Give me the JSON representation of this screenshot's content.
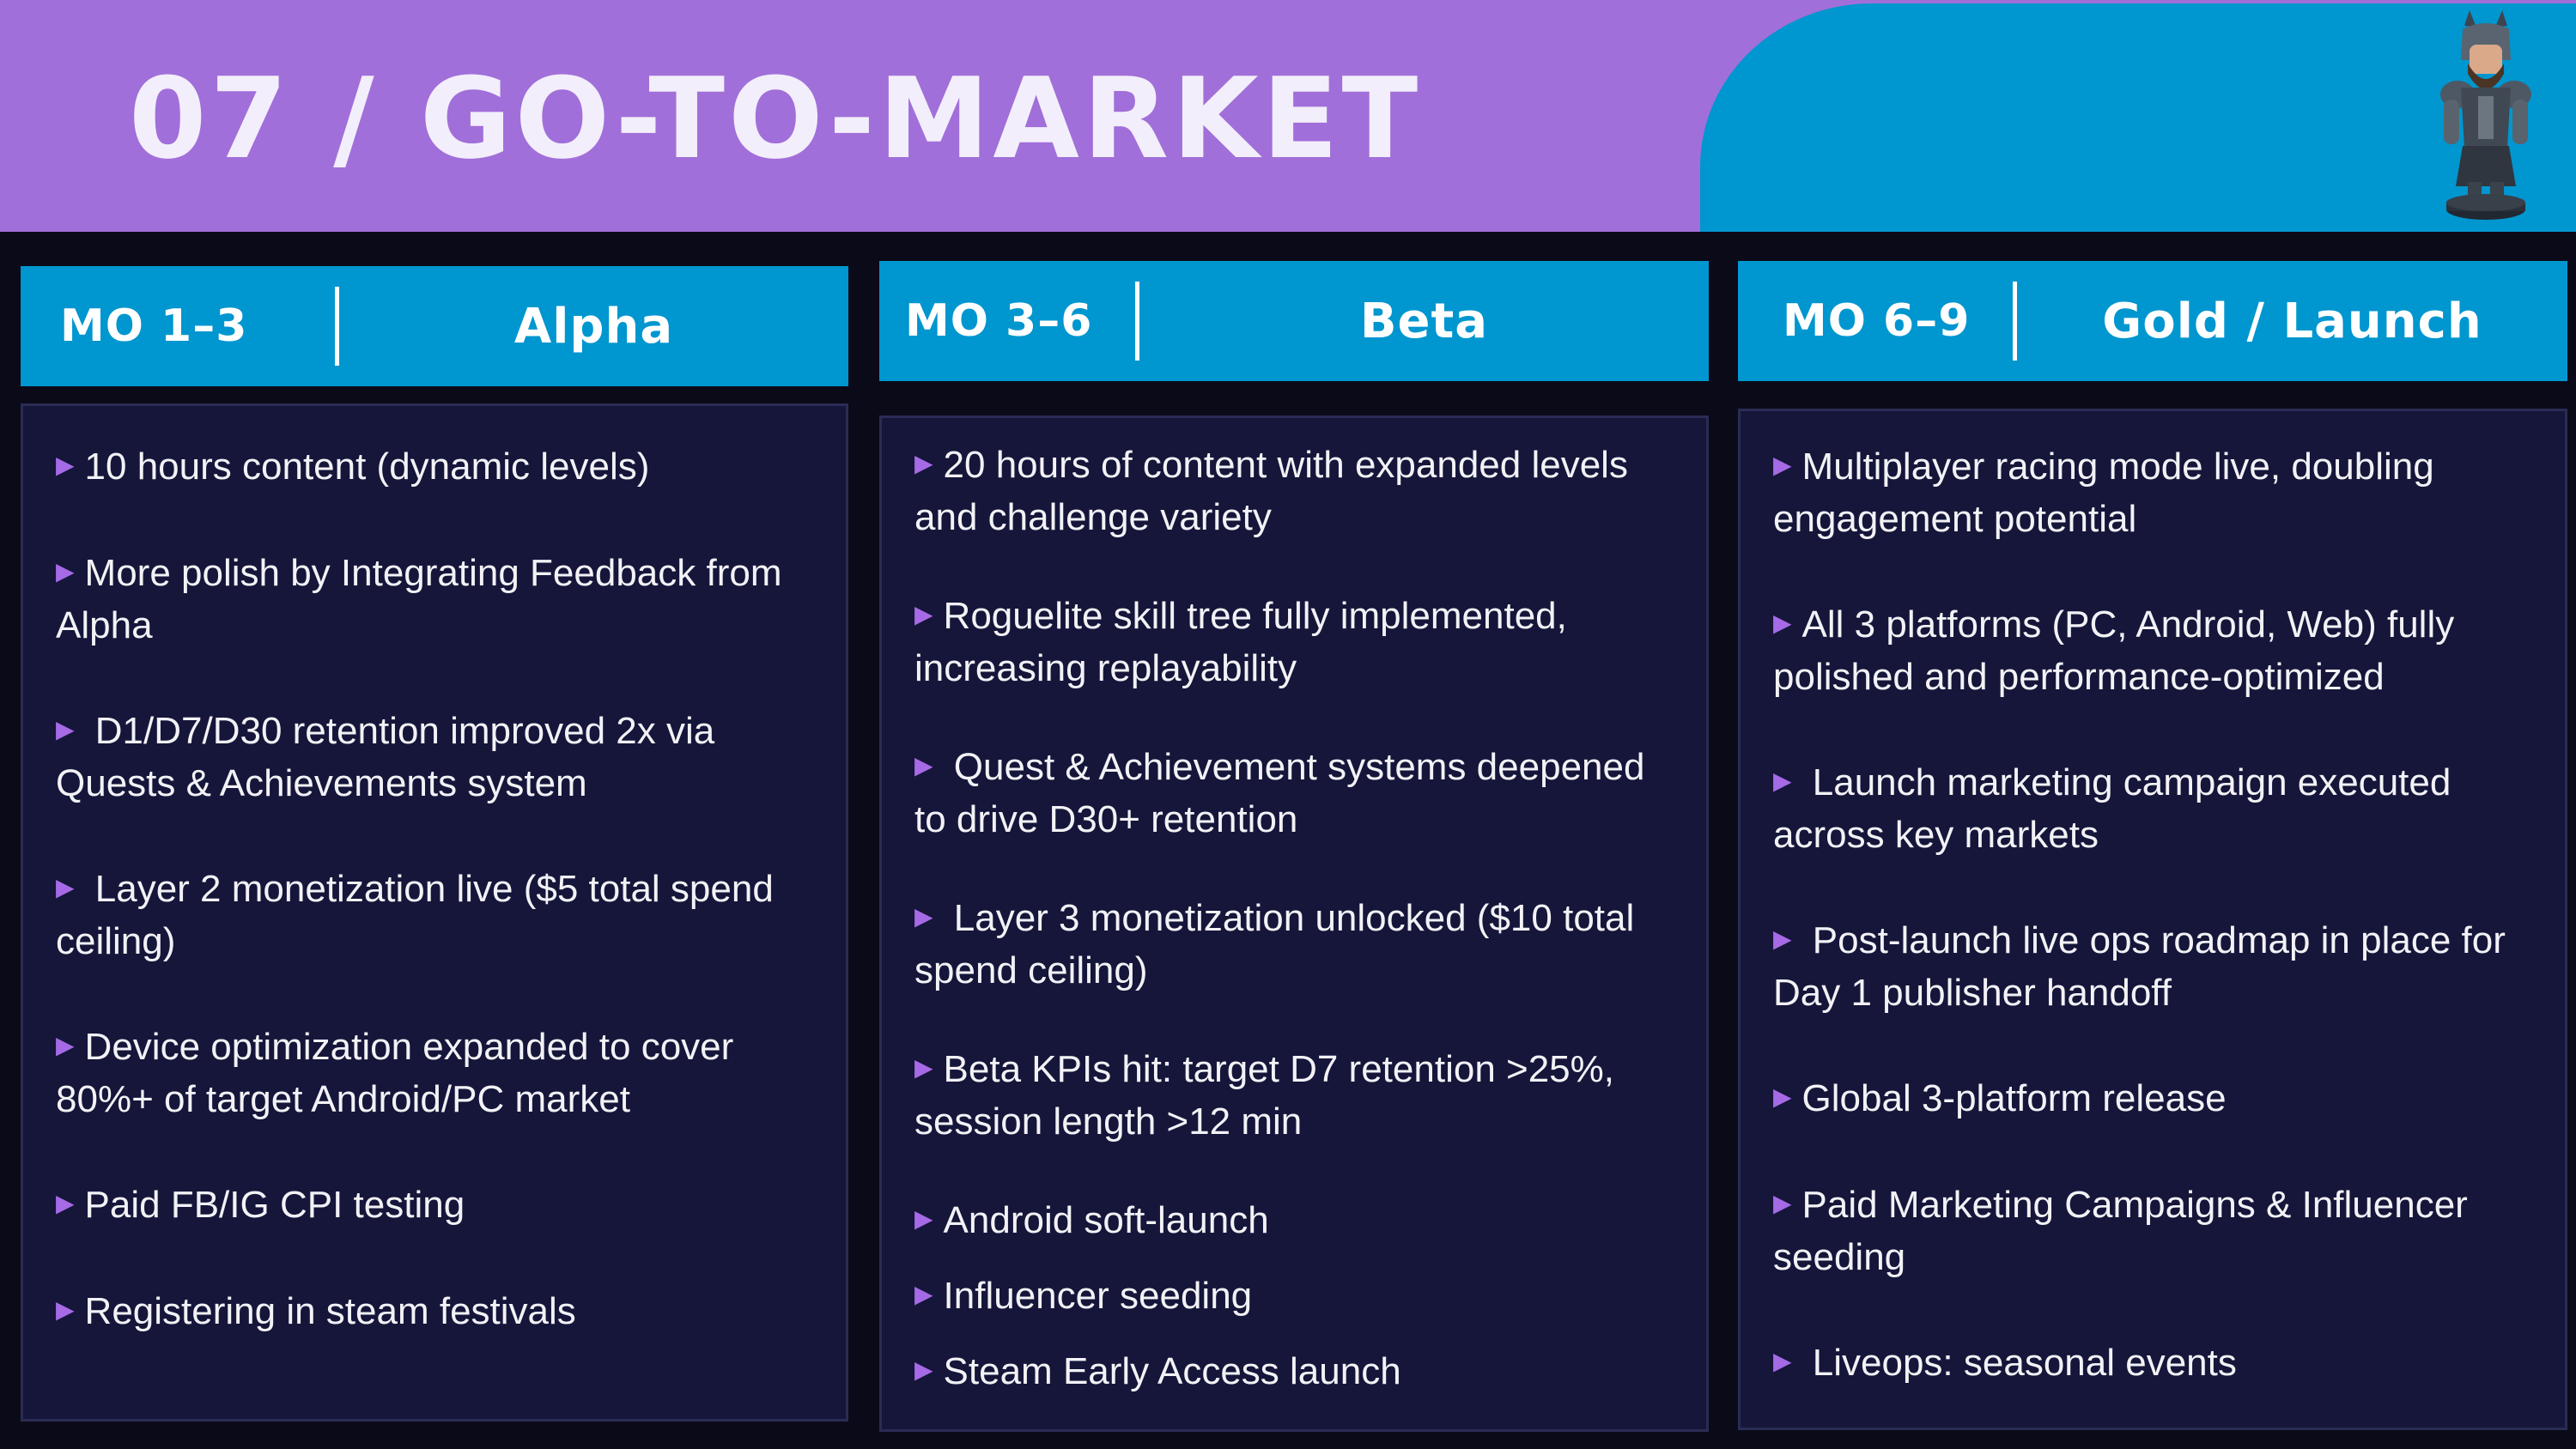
{
  "header": {
    "title": "07 / GO-TO-MARKET",
    "mascot_icon": "armored-warrior-figurine",
    "bg_color": "#a16fd9",
    "accent_color": "#0096cf"
  },
  "phases": [
    {
      "month": "MO 1–3",
      "name": "Alpha",
      "items": [
        "10 hours content (dynamic levels)",
        "More polish by Integrating Feedback from Alpha",
        " D1/D7/D30 retention improved 2x via Quests & Achievements system",
        " Layer 2 monetization live ($5 total spend ceiling)",
        "Device optimization expanded to cover 80%+ of target Android/PC market",
        "Paid FB/IG CPI testing",
        "Registering in steam festivals"
      ]
    },
    {
      "month": "MO 3–6",
      "name": "Beta",
      "items": [
        "20 hours of content with expanded levels and challenge variety",
        "Roguelite skill tree fully implemented, increasing replayability",
        " Quest & Achievement systems deepened to drive D30+ retention",
        " Layer 3 monetization unlocked ($10 total spend ceiling)",
        "Beta KPIs hit: target D7 retention >25%, session length >12 min",
        "Android soft-launch",
        "Influencer seeding",
        "Steam Early Access launch"
      ]
    },
    {
      "month": "MO 6–9",
      "name": "Gold / Launch",
      "items": [
        "Multiplayer racing mode live, doubling engagement potential",
        "All 3 platforms (PC, Android, Web) fully polished and performance-optimized",
        " Launch marketing campaign executed across key markets",
        " Post-launch live ops roadmap in place for Day 1 publisher handoff",
        "Global 3-platform release",
        "Paid Marketing Campaigns  & Influencer seeding",
        " Liveops: seasonal events"
      ]
    }
  ],
  "colors": {
    "background": "#0b0a18",
    "phase_header": "#0096cf",
    "phase_box": "#15163a",
    "bullet": "#a66ae6",
    "text": "#f2f2f6"
  }
}
